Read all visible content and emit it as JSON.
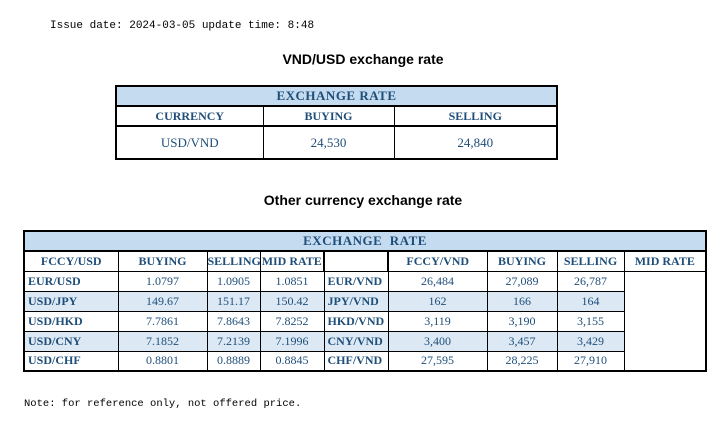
{
  "meta": {
    "issue_line": "Issue date: 2024-03-05 update time: 8:48",
    "note_line": "Note: for reference only, not offered price."
  },
  "colors": {
    "table_text": "#1F4E79",
    "band_bg": "#C5DBF0",
    "stripe_bg": "#DCE9F5",
    "border": "#000000"
  },
  "usd_table": {
    "title": "VND/USD exchange rate",
    "band_title": "EXCHANGE RATE",
    "columns": [
      "CURRENCY",
      "BUYING",
      "SELLING"
    ],
    "rows": [
      [
        "USD/VND",
        "24,530",
        "24,840"
      ]
    ]
  },
  "other_table": {
    "title": "Other currency exchange rate",
    "band_title": "EXCHANGE  RATE",
    "left": {
      "columns": [
        "FCCY/USD",
        "BUYING",
        "SELLING",
        "MID RATE"
      ],
      "rows": [
        [
          "EUR/USD",
          "1.0797",
          "1.0905",
          "1.0851"
        ],
        [
          "USD/JPY",
          "149.67",
          "151.17",
          "150.42"
        ],
        [
          "USD/HKD",
          "7.7861",
          "7.8643",
          "7.8252"
        ],
        [
          "USD/CNY",
          "7.1852",
          "7.2139",
          "7.1996"
        ],
        [
          "USD/CHF",
          "0.8801",
          "0.8889",
          "0.8845"
        ]
      ]
    },
    "right": {
      "columns": [
        "FCCY/VND",
        "BUYING",
        "SELLING",
        "MID RATE"
      ],
      "rows": [
        [
          "EUR/VND",
          "26,484",
          "27,089",
          "26,787"
        ],
        [
          "JPY/VND",
          "162",
          "166",
          "164"
        ],
        [
          "HKD/VND",
          "3,119",
          "3,190",
          "3,155"
        ],
        [
          "CNY/VND",
          "3,400",
          "3,457",
          "3,429"
        ],
        [
          "CHF/VND",
          "27,595",
          "28,225",
          "27,910"
        ]
      ]
    }
  }
}
